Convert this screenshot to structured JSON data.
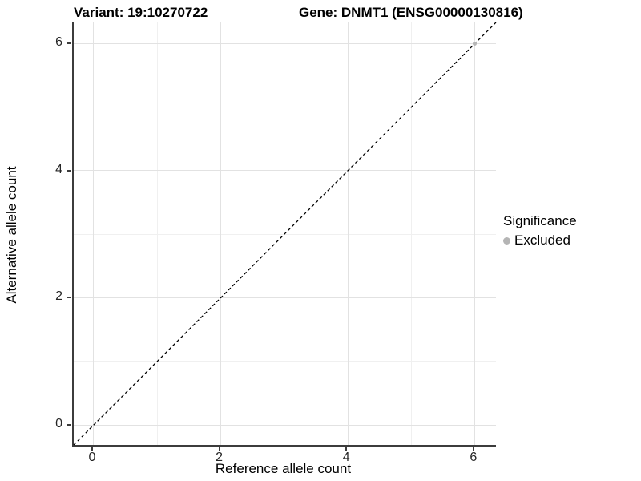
{
  "titles": {
    "variant": "Variant: 19:10270722",
    "gene": "Gene: DNMT1 (ENSG00000130816)"
  },
  "chart_data": {
    "type": "scatter",
    "title_left": "Variant: 19:10270722",
    "title_right": "Gene: DNMT1 (ENSG00000130816)",
    "xlabel": "Reference allele count",
    "ylabel": "Alternative allele count",
    "xlim": [
      -0.315,
      6.33
    ],
    "ylim": [
      -0.315,
      6.33
    ],
    "x_ticks": [
      0,
      2,
      4,
      6
    ],
    "y_ticks": [
      0,
      2,
      4,
      6
    ],
    "x_minor_ticks": [
      1,
      3,
      5
    ],
    "y_minor_ticks": [
      1,
      3,
      5
    ],
    "grid": true,
    "reference_line": {
      "kind": "abline",
      "slope": 1,
      "intercept": 0,
      "style": "dashed",
      "color": "#000000"
    },
    "series": [
      {
        "name": "Excluded",
        "color": "#b5b5b5",
        "points": [
          {
            "x": 6,
            "y": 6
          }
        ]
      }
    ],
    "legend": {
      "title": "Significance",
      "position": "right",
      "items": [
        {
          "label": "Excluded",
          "color": "#b5b5b5"
        }
      ]
    }
  },
  "colors": {
    "axis_line": "#3c3c3c",
    "grid_major": "#e2e2e2",
    "grid_minor": "#f0f0f0",
    "tick_text": "#262626",
    "background": "#ffffff"
  }
}
